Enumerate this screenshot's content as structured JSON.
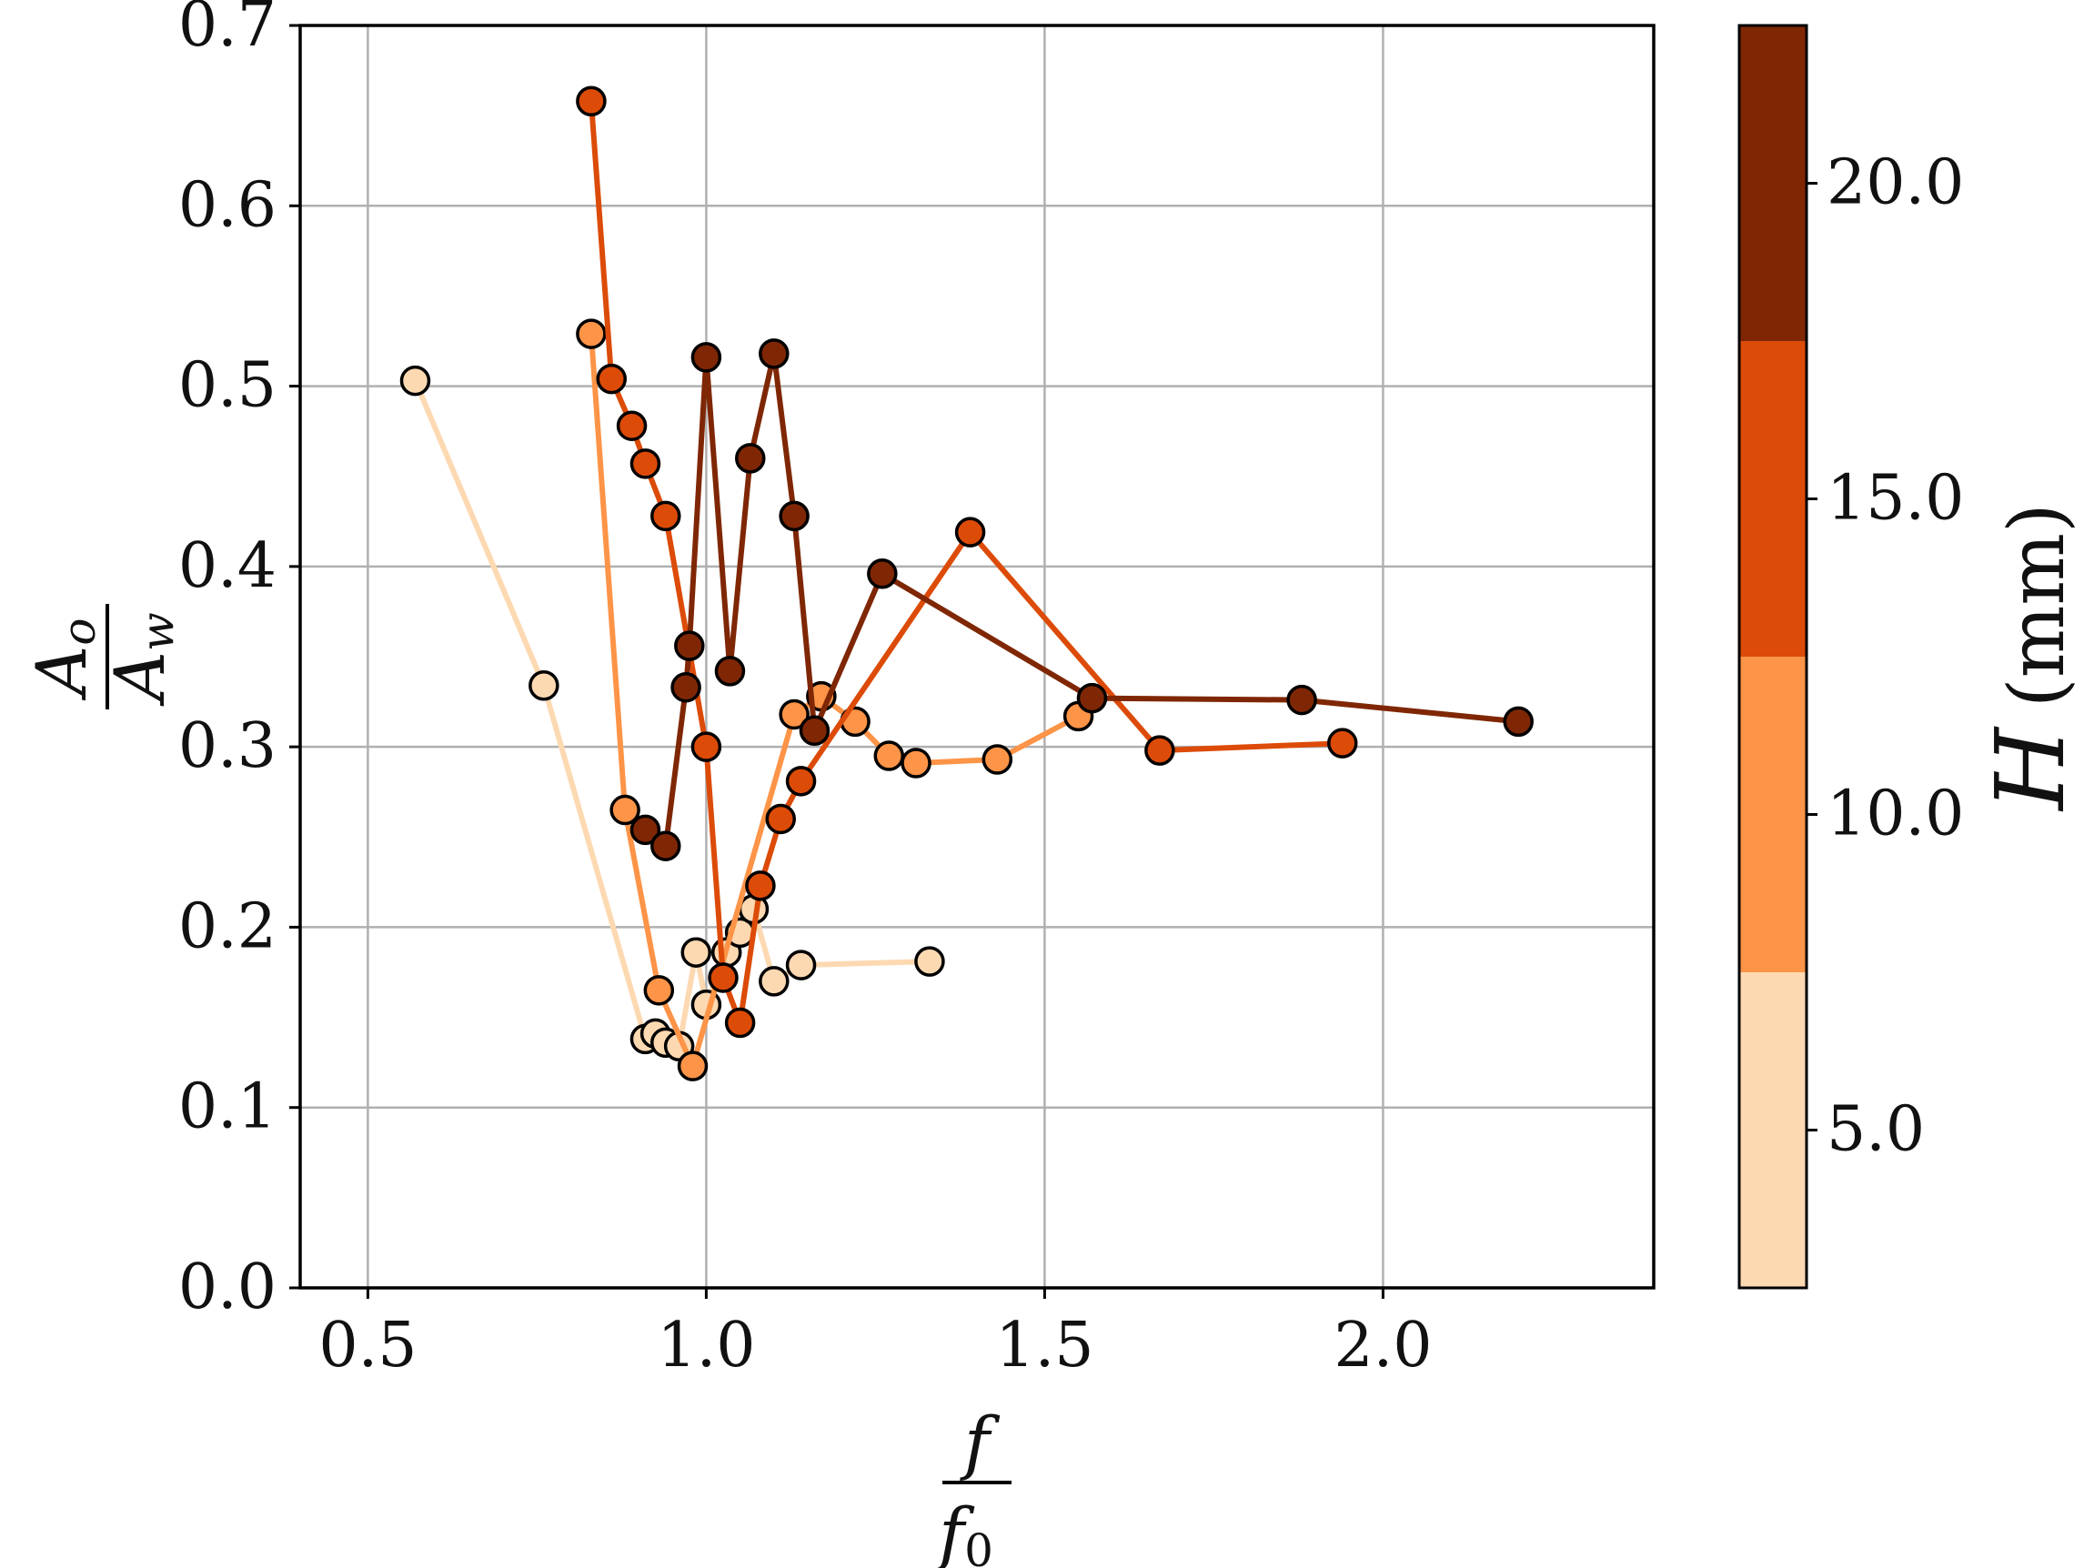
{
  "chart_data": {
    "type": "line",
    "xlim": [
      0.4,
      2.4
    ],
    "ylim": [
      0.0,
      0.7
    ],
    "grid": true,
    "xticks": [
      "0.5",
      "1.0",
      "1.5",
      "2.0"
    ],
    "yticks": [
      "0.0",
      "0.1",
      "0.2",
      "0.3",
      "0.4",
      "0.5",
      "0.6",
      "0.7"
    ],
    "xlabel": {
      "numerator": "f",
      "denominator": "f",
      "denominator_sub": "0"
    },
    "ylabel": {
      "numerator": "A",
      "numerator_sub": "o",
      "denominator": "A",
      "denominator_sub": "w"
    },
    "colorbar": {
      "label_symbol": "H",
      "label_unit": "(mm)",
      "range": [
        2.5,
        22.5
      ],
      "ticks": [
        "5.0",
        "10.0",
        "15.0",
        "20.0"
      ],
      "bands": [
        {
          "from": 2.5,
          "to": 7.5,
          "color": "#fdd9b2"
        },
        {
          "from": 7.5,
          "to": 12.5,
          "color": "#fd9447"
        },
        {
          "from": 12.5,
          "to": 17.5,
          "color": "#dc4b08"
        },
        {
          "from": 17.5,
          "to": 22.5,
          "color": "#7f2705"
        }
      ]
    },
    "series": [
      {
        "name": "H = 5.0 mm",
        "color": "#fdd9b2",
        "x": [
          0.57,
          0.76,
          0.91,
          0.925,
          0.94,
          0.96,
          0.985,
          1.0,
          1.03,
          1.05,
          1.07,
          1.1,
          1.14,
          1.33
        ],
        "y": [
          0.503,
          0.334,
          0.138,
          0.141,
          0.136,
          0.134,
          0.186,
          0.157,
          0.186,
          0.197,
          0.21,
          0.17,
          0.179,
          0.181
        ]
      },
      {
        "name": "H = 10.0 mm",
        "color": "#fd9447",
        "x": [
          0.83,
          0.88,
          0.93,
          0.98,
          1.13,
          1.17,
          1.22,
          1.27,
          1.31,
          1.43,
          1.55
        ],
        "y": [
          0.529,
          0.265,
          0.165,
          0.123,
          0.318,
          0.328,
          0.314,
          0.295,
          0.291,
          0.293,
          0.317
        ]
      },
      {
        "name": "H = 15.0 mm",
        "color": "#dc4b08",
        "x": [
          0.83,
          0.86,
          0.89,
          0.91,
          0.94,
          1.0,
          1.025,
          1.05,
          1.08,
          1.11,
          1.14,
          1.39,
          1.67,
          1.94
        ],
        "y": [
          0.658,
          0.504,
          0.478,
          0.457,
          0.428,
          0.3,
          0.172,
          0.147,
          0.223,
          0.26,
          0.281,
          0.419,
          0.298,
          0.302
        ]
      },
      {
        "name": "H = 20.0 mm",
        "color": "#7f2705",
        "x": [
          0.91,
          0.94,
          0.97,
          0.975,
          1.0,
          1.035,
          1.065,
          1.1,
          1.13,
          1.16,
          1.26,
          1.57,
          1.88,
          2.2
        ],
        "y": [
          0.254,
          0.245,
          0.333,
          0.356,
          0.516,
          0.342,
          0.46,
          0.518,
          0.428,
          0.309,
          0.396,
          0.327,
          0.326,
          0.314
        ]
      }
    ]
  }
}
